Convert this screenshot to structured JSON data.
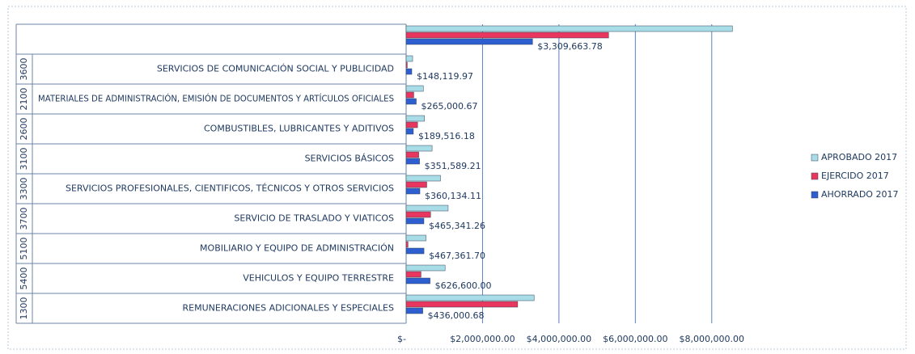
{
  "chart_data": {
    "type": "bar",
    "orientation": "horizontal",
    "categories": [
      null,
      "SERVICIOS DE COMUNICACIÓN SOCIAL Y PUBLICIDAD",
      "MATERIALES DE ADMINISTRACIÓN, EMISIÓN DE DOCUMENTOS Y ARTÍCULOS OFICIALES",
      "COMBUSTIBLES, LUBRICANTES Y ADITIVOS",
      "SERVICIOS BÁSICOS",
      "SERVICIOS PROFESIONALES, CIENTIFICOS, TÉCNICOS Y OTROS SERVICIOS",
      "SERVICIO DE TRASLADO Y VIATICOS",
      "MOBILIARIO Y EQUIPO DE ADMINISTRACIÓN",
      "VEHICULOS Y EQUIPO TERRESTRE",
      "REMUNERACIONES ADICIONALES Y ESPECIALES"
    ],
    "category_codes": [
      null,
      "3600",
      "2100",
      "2600",
      "3100",
      "3300",
      "3700",
      "5100",
      "5400",
      "1300"
    ],
    "series": [
      {
        "name": "APROBADO 2017",
        "color": "#a8dce6",
        "values": [
          8540000,
          170000,
          450000,
          480000,
          680000,
          900000,
          1100000,
          520000,
          1020000,
          3350000
        ]
      },
      {
        "name": "EJERCIDO 2017",
        "color": "#e8365f",
        "values": [
          5300000,
          30000,
          200000,
          300000,
          330000,
          540000,
          640000,
          50000,
          390000,
          2920000
        ]
      },
      {
        "name": "AHORRADO 2017",
        "color": "#2e5fd0",
        "values": [
          3309663.78,
          148119.97,
          265000.67,
          189516.18,
          351589.21,
          360134.11,
          465341.26,
          467361.7,
          626600.0,
          436000.68
        ],
        "value_labels": [
          "$3,309,663.78",
          "$148,119.97",
          "$265,000.67",
          "$189,516.18",
          "$351,589.21",
          "$360,134.11",
          "$465,341.26",
          "$467,361.70",
          "$626,600.00",
          "$436,000.68"
        ]
      }
    ],
    "xlim": [
      0,
      9000000
    ],
    "xticks": [
      {
        "value": 0,
        "label": "$-"
      },
      {
        "value": 2000000,
        "label": "$2,000,000.00"
      },
      {
        "value": 4000000,
        "label": "$4,000,000.00"
      },
      {
        "value": 6000000,
        "label": "$6,000,000.00"
      },
      {
        "value": 8000000,
        "label": "$8,000,000.00"
      }
    ],
    "grid": true,
    "legend": "right"
  }
}
